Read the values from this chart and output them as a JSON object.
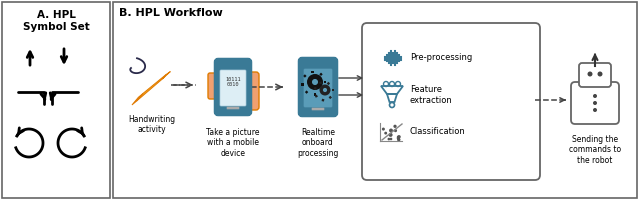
{
  "fig_width": 6.4,
  "fig_height": 2.0,
  "dpi": 100,
  "bg_color": "#ffffff",
  "section_a_title": "A. HPL\nSymbol Set",
  "section_b_title": "B. HPL Workflow",
  "labels": {
    "handwriting": "Handwriting\nactivity",
    "mobile": "Take a picture\nwith a mobile\ndevice",
    "realtime": "Realtime\nonboard\nprocessing",
    "preprocessing": "Pre-processing",
    "feature": "Feature\nextraction",
    "classification": "Classification",
    "sending": "Sending the\ncommands to\nthe robot"
  },
  "teal_color": "#5a9cb8",
  "dark_teal": "#3a7a96",
  "gear_color": "#222222",
  "arrow_color": "#444444",
  "border_color": "#666666",
  "skin_color": "#f0a070",
  "pencil_yellow": "#f4a623",
  "pencil_dark": "#e07b00"
}
